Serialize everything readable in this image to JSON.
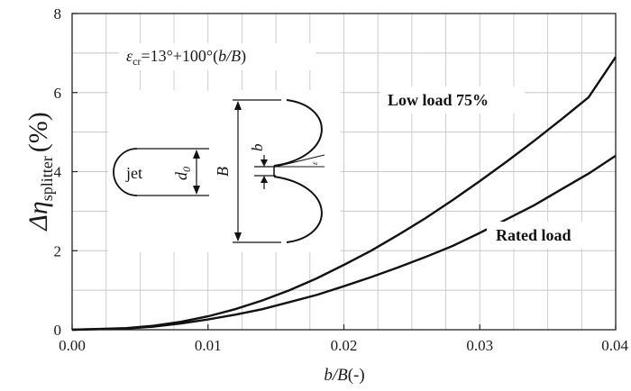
{
  "chart_data": {
    "type": "line",
    "x_label_main": "b/B",
    "x_label_unit": "(-)",
    "y_label_symbol": "Δη",
    "y_label_sub": "splitter",
    "y_label_unit": "(%)",
    "x_ticks": [
      "0.00",
      "0.01",
      "0.02",
      "0.03",
      "0.04"
    ],
    "y_ticks": [
      "0",
      "2",
      "4",
      "6",
      "8"
    ],
    "xlim": [
      0,
      0.04
    ],
    "ylim": [
      0,
      8
    ],
    "grid": true,
    "annotation_formula": {
      "eps": "ε",
      "sub": "cr",
      "mid": "=13°+100°(",
      "frac": "b/B",
      "end": ")"
    },
    "series": [
      {
        "name": "Low load 75%",
        "x": [
          0,
          0.004,
          0.006,
          0.008,
          0.01,
          0.012,
          0.014,
          0.016,
          0.018,
          0.02,
          0.022,
          0.024,
          0.026,
          0.028,
          0.03,
          0.032,
          0.034,
          0.036,
          0.038,
          0.04
        ],
        "y": [
          0,
          0.04,
          0.1,
          0.2,
          0.34,
          0.52,
          0.74,
          1.0,
          1.3,
          1.64,
          2.0,
          2.4,
          2.82,
          3.28,
          3.76,
          4.26,
          4.78,
          5.32,
          5.88,
          6.9
        ]
      },
      {
        "name": "Rated load",
        "x": [
          0,
          0.004,
          0.006,
          0.008,
          0.01,
          0.012,
          0.014,
          0.016,
          0.018,
          0.02,
          0.022,
          0.024,
          0.026,
          0.028,
          0.03,
          0.032,
          0.034,
          0.036,
          0.038,
          0.04
        ],
        "y": [
          0,
          0.03,
          0.08,
          0.16,
          0.26,
          0.38,
          0.52,
          0.7,
          0.88,
          1.1,
          1.33,
          1.58,
          1.84,
          2.12,
          2.45,
          2.8,
          3.15,
          3.55,
          3.95,
          4.4
        ]
      }
    ]
  },
  "inset": {
    "jet_label": "jet",
    "d0_main": "d",
    "d0_sub": "0",
    "B_label": "B",
    "b_label": "b",
    "eps_label": "ε"
  }
}
